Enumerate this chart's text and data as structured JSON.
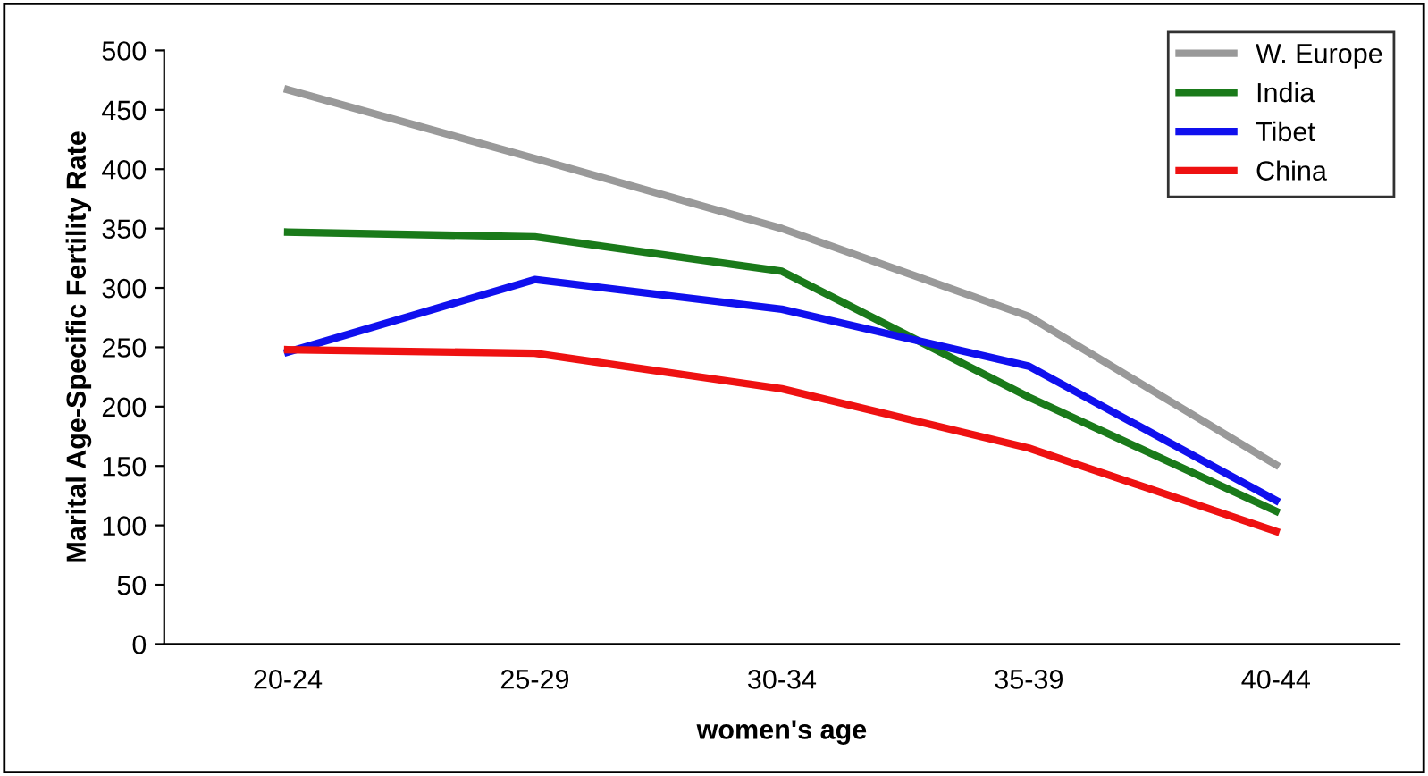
{
  "chart_data": {
    "type": "line",
    "xlabel": "women's age",
    "ylabel": "Marital Age-Specific Fertility Rate",
    "categories": [
      "20-24",
      "25-29",
      "30-34",
      "35-39",
      "40-44"
    ],
    "series": [
      {
        "name": "W. Europe",
        "color": "#999999",
        "values": [
          467,
          409,
          350,
          276,
          151
        ]
      },
      {
        "name": "India",
        "color": "#1a7a1a",
        "values": [
          347,
          343,
          314,
          208,
          112
        ]
      },
      {
        "name": "Tibet",
        "color": "#1010ee",
        "values": [
          246,
          307,
          282,
          234,
          121
        ]
      },
      {
        "name": "China",
        "color": "#ee1111",
        "values": [
          248,
          245,
          215,
          165,
          95
        ]
      }
    ],
    "ylim": [
      0,
      500
    ],
    "yticks": [
      0,
      50,
      100,
      150,
      200,
      250,
      300,
      350,
      400,
      450,
      500
    ],
    "grid": false,
    "legend": "top right",
    "marker": "none",
    "line_style": "solid"
  }
}
